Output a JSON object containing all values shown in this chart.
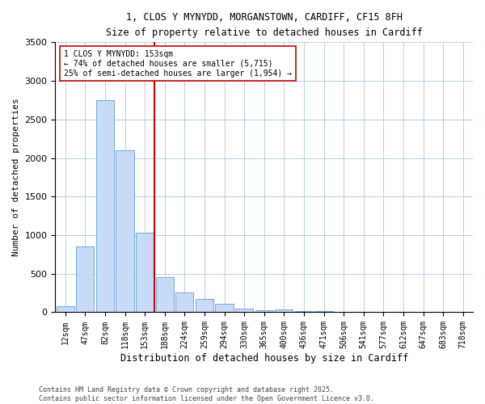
{
  "title_line1": "1, CLOS Y MYNYDD, MORGANSTOWN, CARDIFF, CF15 8FH",
  "title_line2": "Size of property relative to detached houses in Cardiff",
  "xlabel": "Distribution of detached houses by size in Cardiff",
  "ylabel": "Number of detached properties",
  "categories": [
    "12sqm",
    "47sqm",
    "82sqm",
    "118sqm",
    "153sqm",
    "188sqm",
    "224sqm",
    "259sqm",
    "294sqm",
    "330sqm",
    "365sqm",
    "400sqm",
    "436sqm",
    "471sqm",
    "506sqm",
    "541sqm",
    "577sqm",
    "612sqm",
    "647sqm",
    "683sqm",
    "718sqm"
  ],
  "values": [
    80,
    850,
    2750,
    2100,
    1030,
    460,
    255,
    175,
    110,
    50,
    30,
    40,
    18,
    12,
    8,
    5,
    4,
    3,
    2,
    2,
    1
  ],
  "bar_color": "#c9daf8",
  "bar_edge_color": "#6fa8dc",
  "vline_index": 4.5,
  "vline_color": "#cc0000",
  "annotation_text": "1 CLOS Y MYNYDD: 153sqm\n← 74% of detached houses are smaller (5,715)\n25% of semi-detached houses are larger (1,954) →",
  "annotation_box_color": "#ffffff",
  "annotation_box_edge": "#cc0000",
  "ylim": [
    0,
    3500
  ],
  "footnote": "Contains HM Land Registry data © Crown copyright and database right 2025.\nContains public sector information licensed under the Open Government Licence v3.0.",
  "bg_color": "#ffffff",
  "grid_color": "#b8cfe4"
}
